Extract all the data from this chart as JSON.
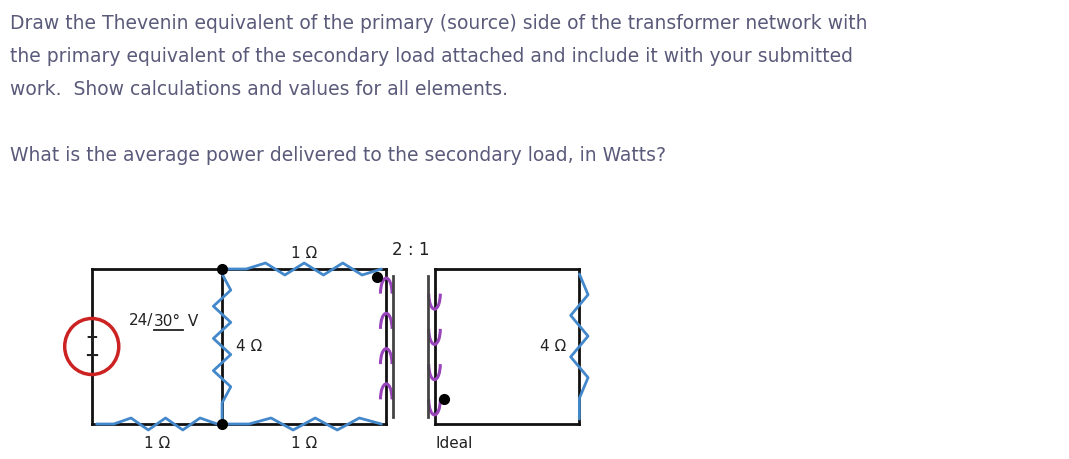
{
  "text_lines": [
    "Draw the Thevenin equivalent of the primary (source) side of the transformer network with",
    "the primary equivalent of the secondary load attached and include it with your submitted",
    "work.  Show calculations and values for all elements.",
    "",
    "What is the average power delivered to the secondary load, in Watts?"
  ],
  "text_color": "#5a5a7a",
  "text_fontsize": 13.5,
  "bg_color": "#ffffff",
  "blue": "#4488cc",
  "red_circle": "#cc2222",
  "purple": "#9944bb",
  "wire_color": "#111111",
  "label_color": "#111111",
  "vs_label": "24/30° V",
  "r_top_label": "1 Ω",
  "r_bot_left_label": "1 Ω",
  "r_bot_right_label": "1 Ω",
  "r_mid_label": "4 Ω",
  "r_sec_label": "4 Ω",
  "transformer_ratio": "2 : 1",
  "ideal_label": "Ideal"
}
